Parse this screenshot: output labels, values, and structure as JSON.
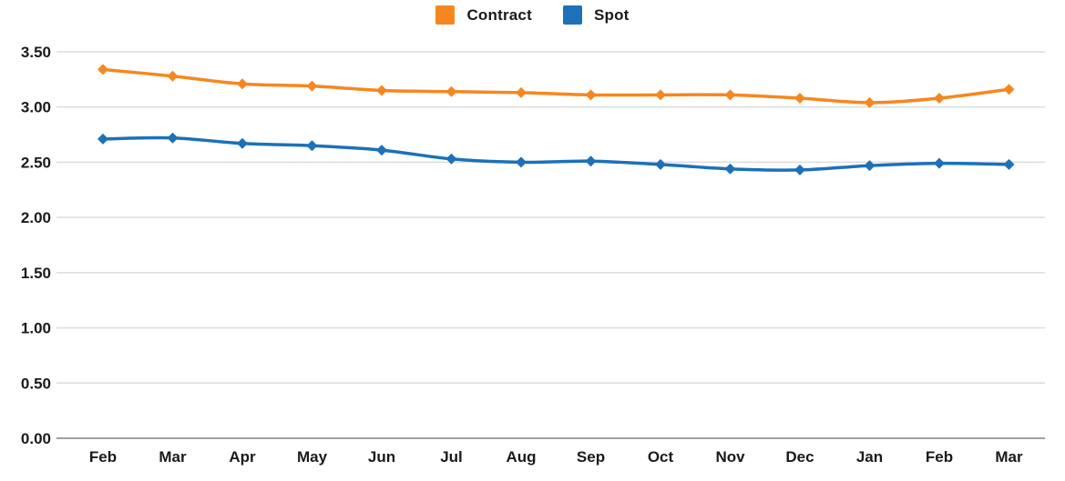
{
  "legend": {
    "position": "top-center",
    "items": [
      {
        "label": "Contract",
        "color": "#F6871F"
      },
      {
        "label": "Spot",
        "color": "#1C71B8"
      }
    ]
  },
  "chart_data": {
    "type": "line",
    "x": [
      "Feb",
      "Mar",
      "Apr",
      "May",
      "Jun",
      "Jul",
      "Aug",
      "Sep",
      "Oct",
      "Nov",
      "Dec",
      "Jan",
      "Feb",
      "Mar"
    ],
    "series": [
      {
        "name": "Contract",
        "color": "#F6871F",
        "marker": "diamond",
        "values": [
          3.34,
          3.28,
          3.21,
          3.19,
          3.15,
          3.14,
          3.13,
          3.11,
          3.11,
          3.11,
          3.08,
          3.04,
          3.08,
          3.16
        ]
      },
      {
        "name": "Spot",
        "color": "#1C71B8",
        "marker": "diamond",
        "values": [
          2.71,
          2.72,
          2.67,
          2.65,
          2.61,
          2.53,
          2.5,
          2.51,
          2.48,
          2.44,
          2.43,
          2.47,
          2.49,
          2.48
        ]
      }
    ],
    "ylim": [
      0,
      3.5
    ],
    "yticks": [
      0,
      0.5,
      1,
      1.5,
      2,
      2.5,
      3,
      3.5
    ],
    "ytick_labels": [
      "0.00",
      "0.50",
      "1.00",
      "1.50",
      "2.00",
      "2.50",
      "3.00",
      "3.50"
    ],
    "grid": "horizontal",
    "legend_position": "top-center",
    "colors": {
      "grid": "#DCDCDC",
      "axis": "#A0A0A0",
      "text": "#1A1A1A",
      "background": "#FFFFFF"
    }
  }
}
